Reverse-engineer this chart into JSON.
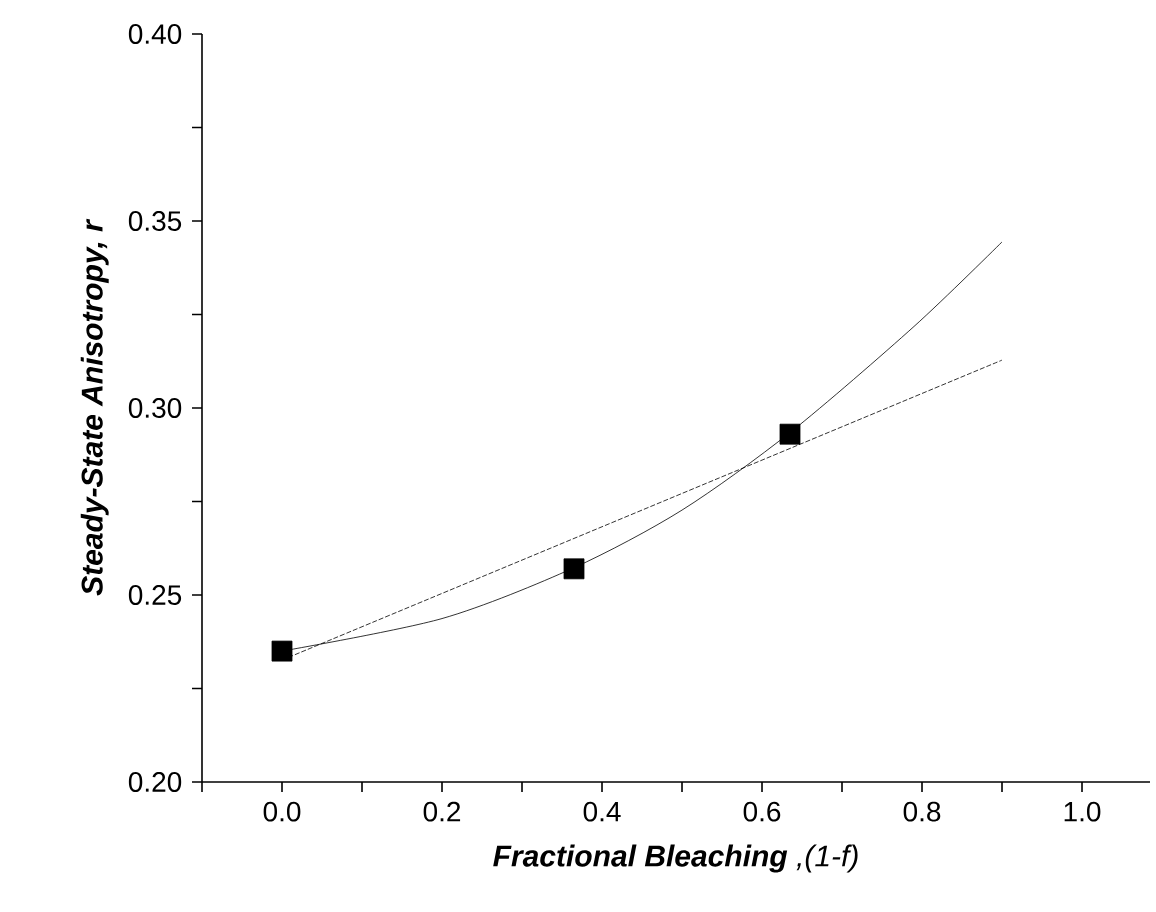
{
  "chart_data": {
    "type": "scatter",
    "xlabel": "**Fractional Bleaching** ,(1-f)",
    "ylabel": "Steady-State Anisotropy, r",
    "xlim": [
      -0.1,
      1.085
    ],
    "ylim": [
      0.2,
      0.4
    ],
    "xticks": [
      {
        "value": -0.1,
        "label": null
      },
      {
        "value": 0,
        "label": "0.0"
      },
      {
        "value": 0.1,
        "label": null
      },
      {
        "value": 0.2,
        "label": "0.2"
      },
      {
        "value": 0.3,
        "label": null
      },
      {
        "value": 0.4,
        "label": "0.4"
      },
      {
        "value": 0.5,
        "label": null
      },
      {
        "value": 0.6,
        "label": "0.6"
      },
      {
        "value": 0.7,
        "label": null
      },
      {
        "value": 0.8,
        "label": "0.8"
      },
      {
        "value": 0.9,
        "label": null
      },
      {
        "value": 1.0,
        "label": "1.0"
      }
    ],
    "yticks": [
      {
        "value": 0.2,
        "label": "0.20"
      },
      {
        "value": 0.225,
        "label": null
      },
      {
        "value": 0.25,
        "label": "0.25"
      },
      {
        "value": 0.275,
        "label": null
      },
      {
        "value": 0.3,
        "label": "0.30"
      },
      {
        "value": 0.325,
        "label": null
      },
      {
        "value": 0.35,
        "label": "0.35"
      },
      {
        "value": 0.375,
        "label": null
      },
      {
        "value": 0.4,
        "label": "0.40"
      }
    ],
    "series": [
      {
        "type": "line",
        "line_style": "solid",
        "marker": "none",
        "color": "#000000",
        "x": [
          0,
          0.2,
          0.364,
          0.5,
          0.636,
          0.79,
          0.9
        ],
        "values": [
          0.235,
          0.2437,
          0.2572,
          0.2727,
          0.2936,
          0.3218,
          0.3444
        ]
      },
      {
        "type": "line",
        "line_style": "dashed",
        "marker": "none",
        "color": "#000000",
        "x": [
          0,
          0.9
        ],
        "values": [
          0.2326,
          0.3128
        ]
      },
      {
        "marker": "square",
        "color": "#000000",
        "x": [
          0,
          0.365,
          0.635
        ],
        "values": [
          0.235,
          0.257,
          0.293
        ]
      }
    ]
  }
}
